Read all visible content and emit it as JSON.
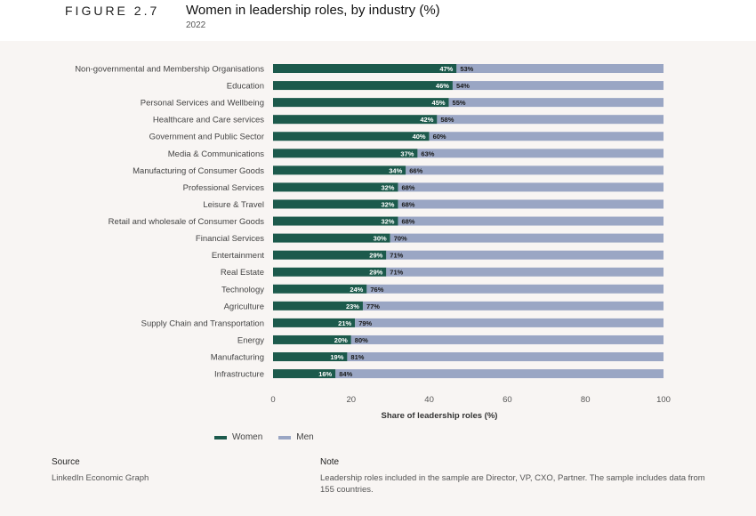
{
  "header": {
    "figure_label": "FIGURE 2.7",
    "title": "Women in leadership roles, by industry (%)",
    "subtitle": "2022"
  },
  "legend": {
    "women": "Women",
    "men": "Men"
  },
  "colors": {
    "women": "#1c5a4c",
    "men": "#9aa6c4",
    "panel_bg": "#f8f5f3"
  },
  "chart_data": {
    "type": "bar",
    "orientation": "horizontal",
    "stacked": true,
    "xlabel": "Share of leadership roles (%)",
    "xlim": [
      0,
      100
    ],
    "xticks": [
      0,
      20,
      40,
      60,
      80,
      100
    ],
    "categories": [
      "Non-governmental and Membership Organisations",
      "Education",
      "Personal Services and Wellbeing",
      "Healthcare and Care services",
      "Government and Public Sector",
      "Media & Communications",
      "Manufacturing of Consumer Goods",
      "Professional Services",
      "Leisure & Travel",
      "Retail and wholesale of Consumer Goods",
      "Financial Services",
      "Entertainment",
      "Real Estate",
      "Technology",
      "Agriculture",
      "Supply Chain and Transportation",
      "Energy",
      "Manufacturing",
      "Infrastructure"
    ],
    "series": [
      {
        "name": "Women",
        "values": [
          47,
          46,
          45,
          42,
          40,
          37,
          34,
          32,
          32,
          32,
          30,
          29,
          29,
          24,
          23,
          21,
          20,
          19,
          16
        ]
      },
      {
        "name": "Men",
        "values": [
          53,
          54,
          55,
          58,
          60,
          63,
          66,
          68,
          68,
          68,
          70,
          71,
          71,
          76,
          77,
          79,
          80,
          81,
          84
        ]
      }
    ],
    "grid": false,
    "legend_position": "bottom-left"
  },
  "footer": {
    "source_heading": "Source",
    "source_text": "LinkedIn Economic Graph",
    "note_heading": "Note",
    "note_text": "Leadership roles included in the sample are Director, VP, CXO, Partner. The sample includes data from 155 countries."
  }
}
